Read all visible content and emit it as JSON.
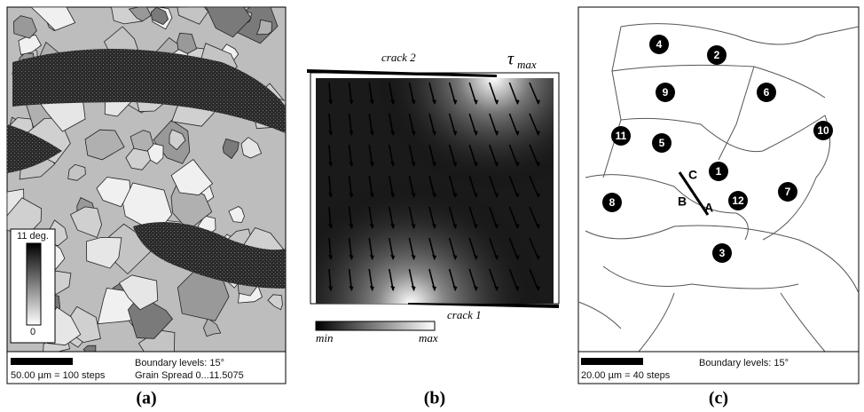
{
  "panel_a": {
    "label": "(a)",
    "colorbar_top": "11 deg.",
    "colorbar_bottom": "0",
    "scale": "50.00 µm = 100 steps",
    "boundary": "Boundary levels: 15°",
    "spread": "Grain Spread 0...11.5075"
  },
  "panel_b": {
    "label": "(b)",
    "crack_top": "crack 2",
    "tau_symbol": "τ",
    "tau_subscript": "max",
    "crack_bottom": "crack 1",
    "bar_min": "min",
    "bar_max": "max"
  },
  "panel_c": {
    "label": "(c)",
    "grains": [
      "1",
      "2",
      "3",
      "4",
      "5",
      "6",
      "7",
      "8",
      "9",
      "10",
      "11",
      "12"
    ],
    "line_top": "C",
    "line_left": "B",
    "line_right": "A",
    "scale": "20.00 µm = 40 steps",
    "boundary": "Boundary levels: 15°"
  }
}
